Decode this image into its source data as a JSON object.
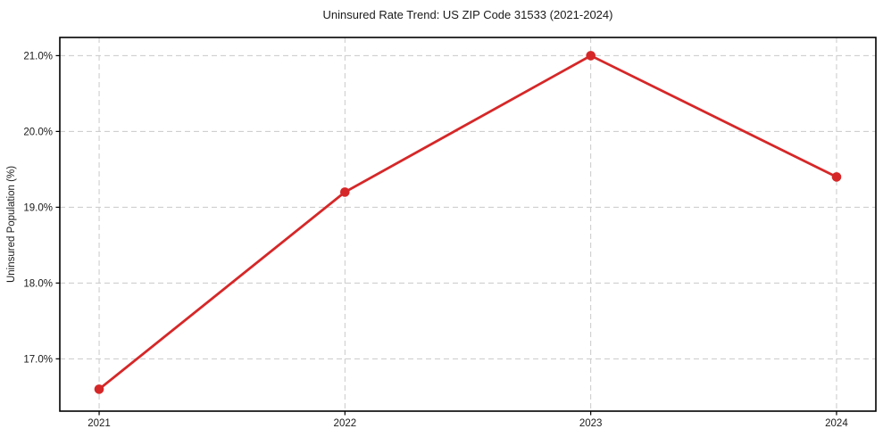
{
  "chart_data": {
    "type": "line",
    "title": "Uninsured Rate Trend: US ZIP Code 31533 (2021-2024)",
    "xlabel": "",
    "ylabel": "Uninsured Population (%)",
    "x": [
      2021,
      2022,
      2023,
      2024
    ],
    "series": [
      {
        "name": "Uninsured rate",
        "values": [
          16.6,
          19.2,
          21.0,
          19.4
        ]
      }
    ],
    "xtick_values": [
      2021,
      2022,
      2023,
      2024
    ],
    "xtick_labels": [
      "2021",
      "2022",
      "2023",
      "2024"
    ],
    "ytick_values": [
      17.0,
      18.0,
      19.0,
      20.0,
      21.0
    ],
    "ytick_labels": [
      "17.0%",
      "18.0%",
      "19.0%",
      "20.0%",
      "21.0%"
    ],
    "xlim": [
      2020.84,
      2024.16
    ],
    "ylim": [
      16.31,
      21.24
    ],
    "grid": "dashed",
    "legend": "none",
    "line_color": "#d62728",
    "marker": "circle",
    "marker_color": "#d62728",
    "grid_color": "#c9c9c9",
    "frame_color": "#000000",
    "background_color": "#ffffff"
  }
}
